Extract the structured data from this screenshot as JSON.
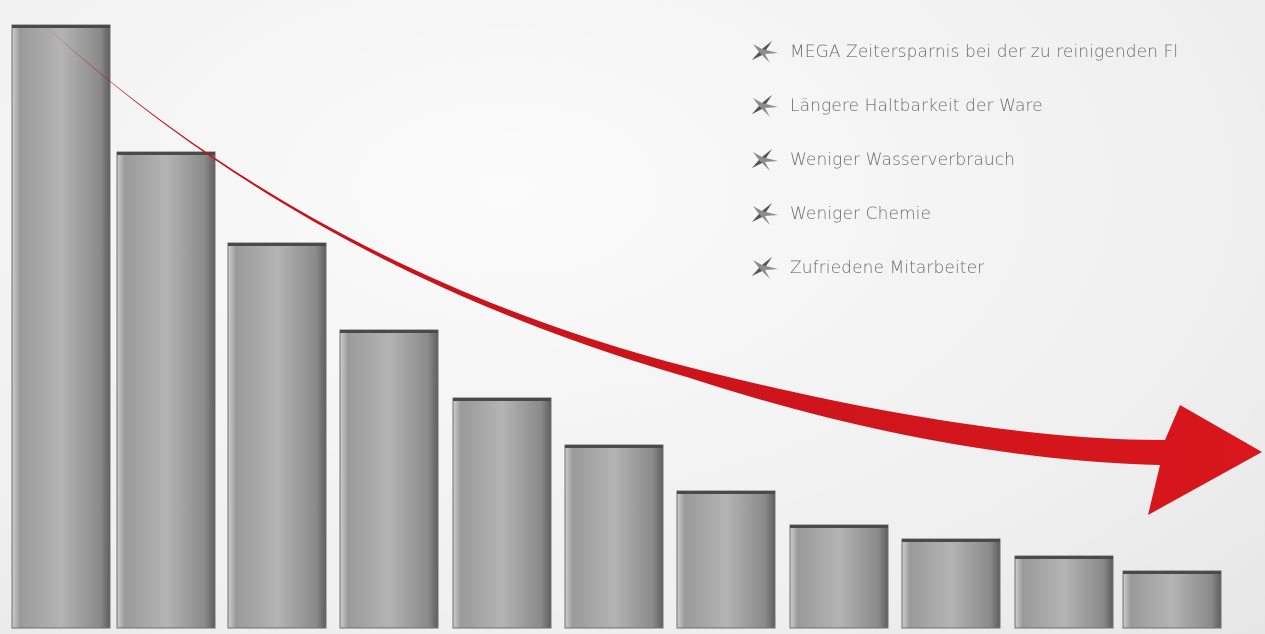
{
  "list": {
    "items": [
      "MEGA Zeitersparnis bei der zu reinigenden Fl",
      "Längere Haltbarkeit der Ware",
      "Weniger Wasserverbrauch",
      "Weniger Chemie",
      "Zufriedene Mitarbeiter"
    ]
  }
}
